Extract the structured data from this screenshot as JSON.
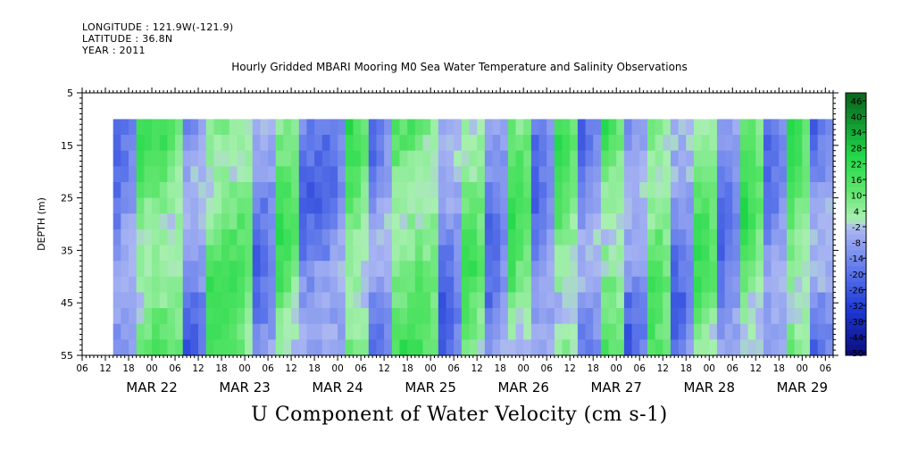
{
  "header": {
    "longitude": "LONGITUDE : 121.9W(-121.9)",
    "latitude": "LATITUDE : 36.8N",
    "year": "YEAR : 2011",
    "title": "Hourly Gridded MBARI Mooring M0 Sea Water Temperature and Salinity Observations",
    "bottom_title": "U Component of Water Velocity (cm s-1)"
  },
  "chart_data": {
    "type": "heatmap",
    "title": "Hourly Gridded MBARI Mooring M0 Sea Water Temperature and Salinity Observations",
    "xlabel": "",
    "ylabel": "DEPTH (m)",
    "colorbar_label": "U Component of Water Velocity (cm s-1)",
    "y_range": [
      5,
      55
    ],
    "y_inverted": true,
    "y_ticks": [
      5,
      15,
      25,
      35,
      45,
      55
    ],
    "data_depth_range": [
      10,
      55
    ],
    "x_range_hours": [
      "MAR 21 06:00",
      "MAR 29 08:00"
    ],
    "data_start": "MAR 21 14:00",
    "hour_ticks": [
      "06",
      "12",
      "18",
      "00",
      "06",
      "12",
      "18",
      "00",
      "06",
      "12",
      "18",
      "00",
      "06",
      "12",
      "18",
      "00",
      "06",
      "12",
      "18",
      "00",
      "06",
      "12",
      "18",
      "00",
      "06",
      "12",
      "18",
      "00",
      "06",
      "12",
      "18",
      "00",
      "06"
    ],
    "date_labels": [
      "MAR 22",
      "MAR 23",
      "MAR 24",
      "MAR 25",
      "MAR 26",
      "MAR 27",
      "MAR 28",
      "MAR 29"
    ],
    "colorbar_levels": [
      48,
      46,
      44,
      42,
      40,
      38,
      36,
      34,
      32,
      30,
      28,
      26,
      24,
      22,
      20,
      18,
      16,
      14,
      12,
      10,
      8,
      6,
      4,
      2,
      0,
      -2,
      -4,
      -6,
      -8,
      -10,
      -12,
      -14,
      -16,
      -18,
      -20,
      -22,
      -24,
      -26,
      -28,
      -30,
      -32,
      -34,
      -36,
      -38,
      -40,
      -42,
      -44,
      -46,
      -48,
      -50
    ],
    "colorbar_labels": [
      "46",
      "40",
      "34",
      "28",
      "22",
      "16",
      "10",
      "4",
      "-2",
      "-8",
      "-14",
      "-20",
      "-26",
      "-32",
      "-38",
      "-44",
      "-50"
    ],
    "velocity_sign_by_6h_block": [
      -1,
      1,
      1,
      -1,
      1,
      1,
      -1,
      1,
      -1,
      -1,
      1,
      -1,
      1,
      1,
      -1,
      1,
      -1,
      1,
      -1,
      1,
      -1,
      1,
      -1,
      1,
      -1,
      1,
      -1,
      1,
      -1,
      1,
      -1,
      1
    ],
    "colors": {
      "positive_strong": "#0a6b1e",
      "positive_mid": "#22d84a",
      "positive_weak": "#a8f0b0",
      "negative_weak": "#aab6f2",
      "negative_mid": "#5c76ea",
      "negative_strong": "#0a0c7a"
    }
  }
}
